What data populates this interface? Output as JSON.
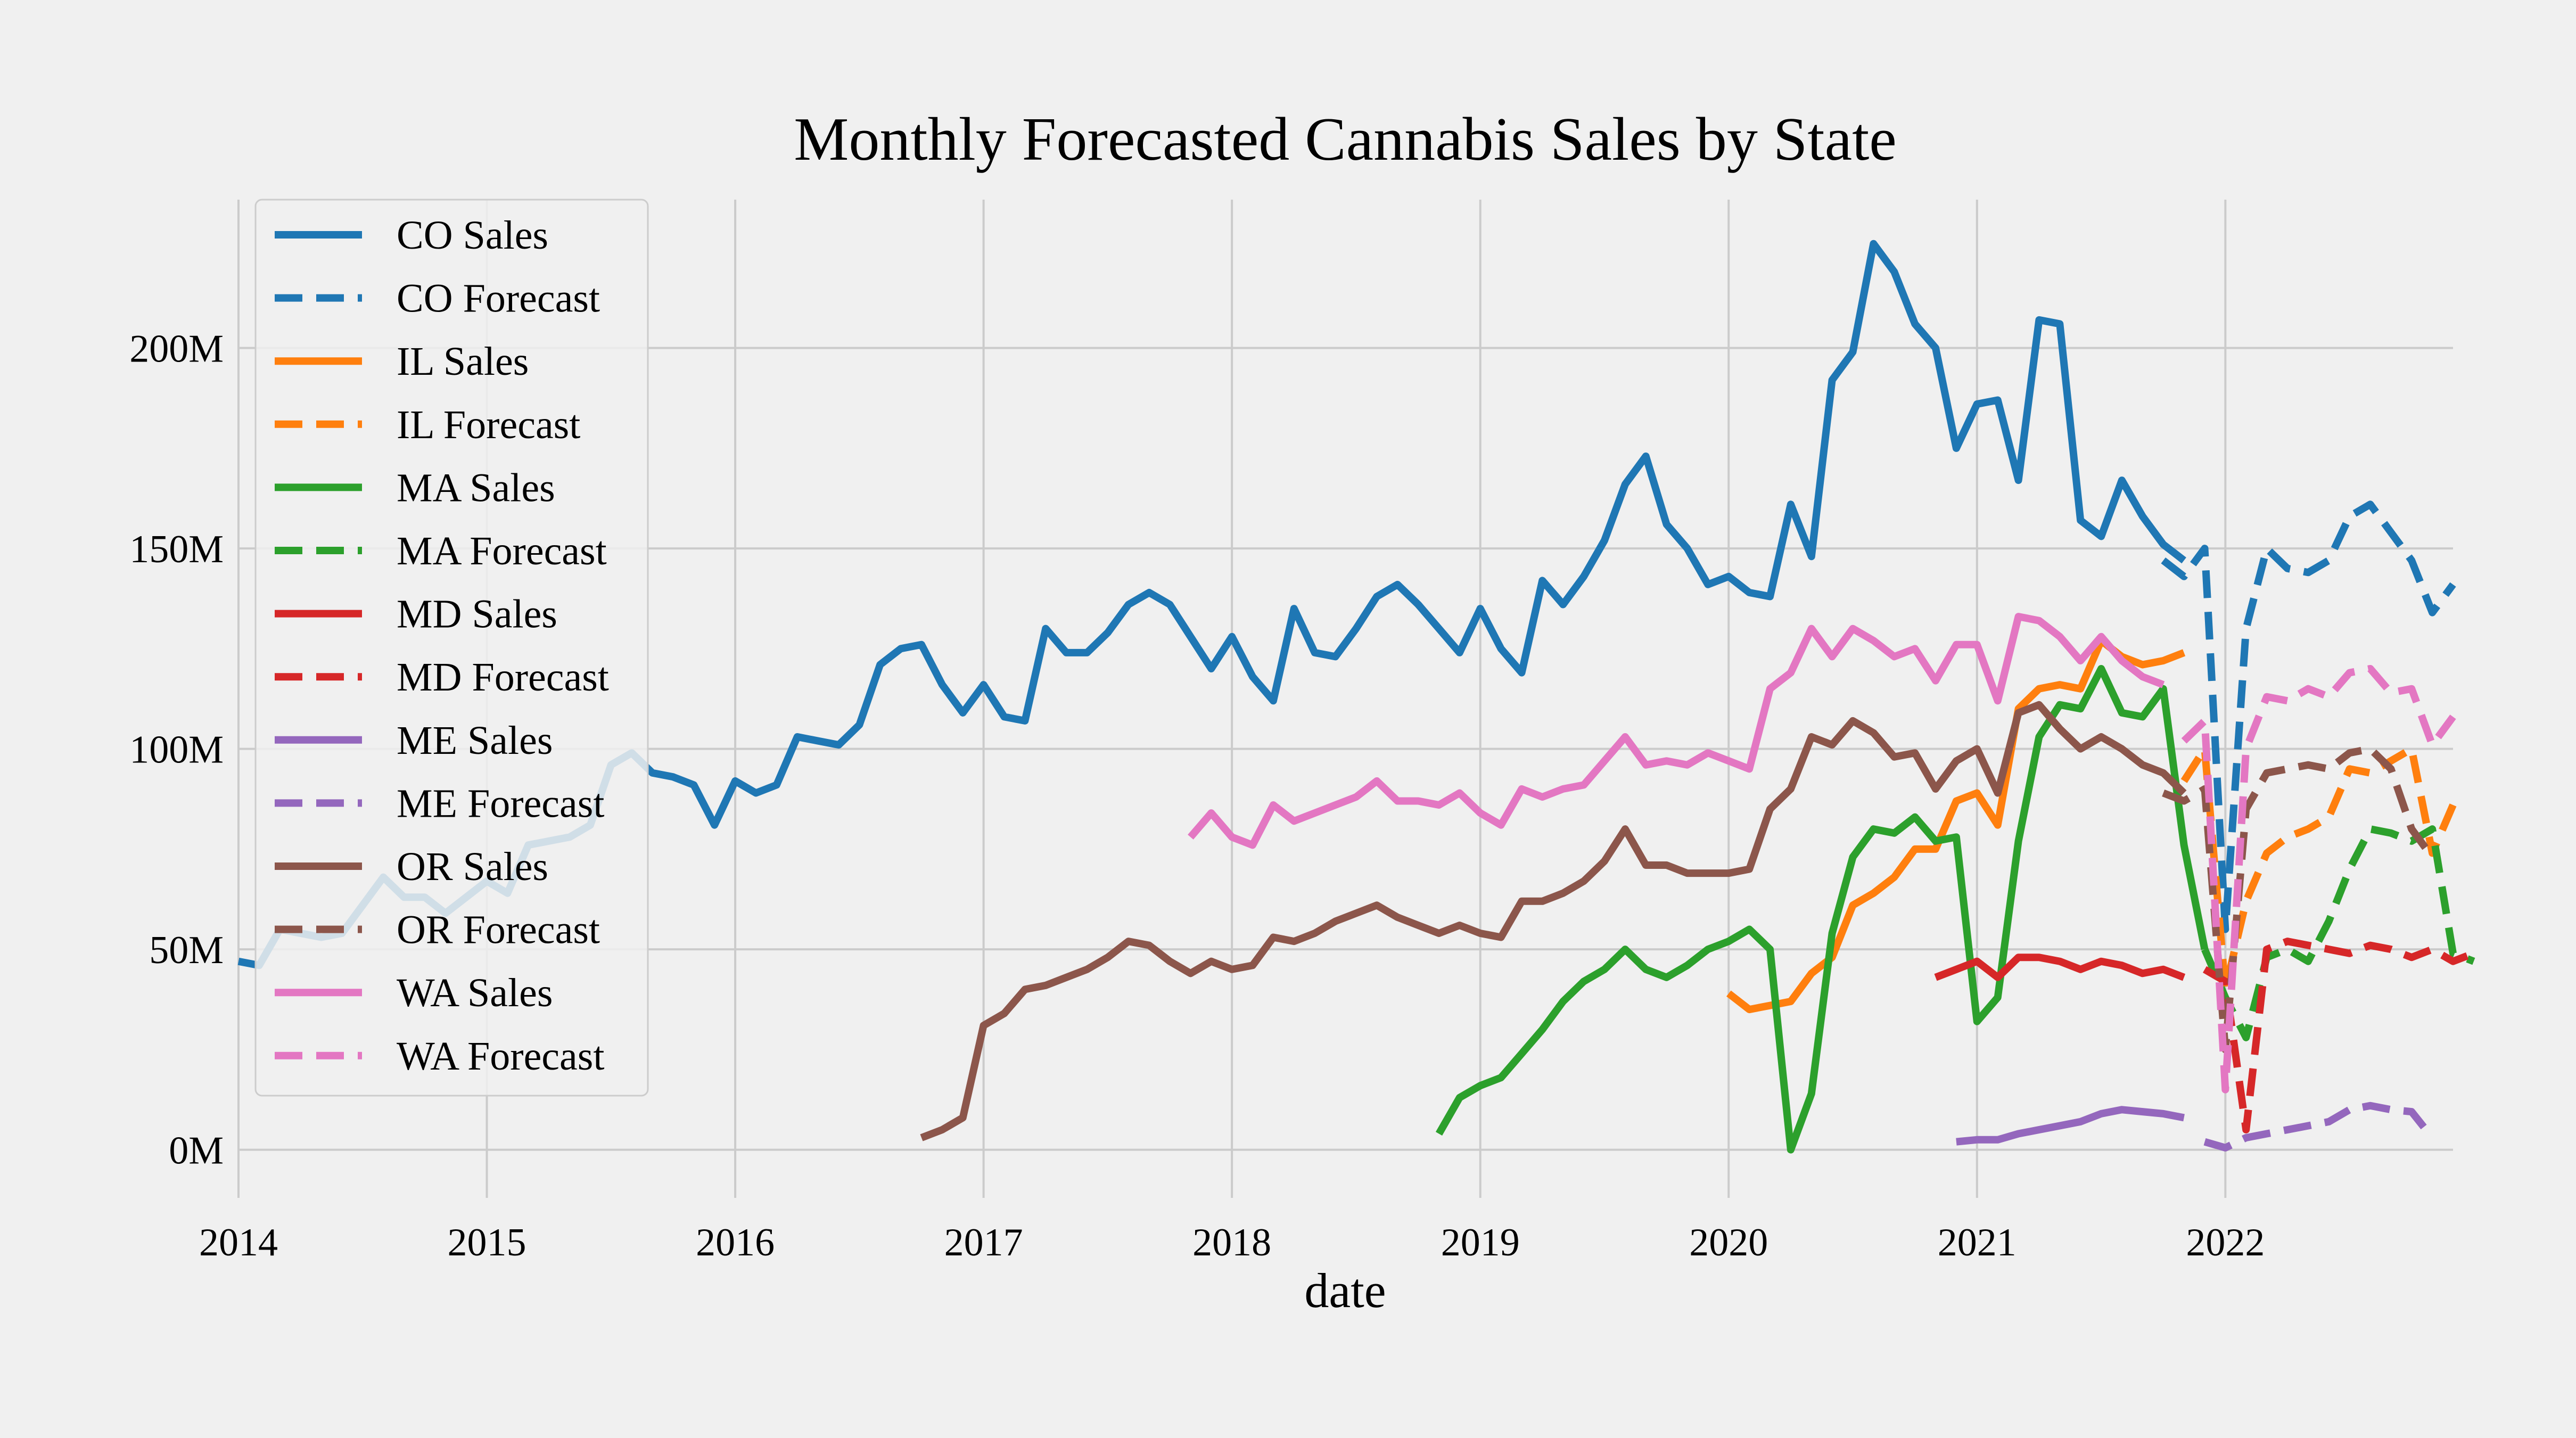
{
  "chart_data": {
    "type": "line",
    "title": "Monthly Forecasted Cannabis Sales by State",
    "xlabel": "date",
    "ylabel": "",
    "xlim": [
      "2014-01",
      "2022-12"
    ],
    "ylim": [
      -12,
      237
    ],
    "x_ticks": [
      "2014",
      "2015",
      "2016",
      "2017",
      "2018",
      "2019",
      "2020",
      "2021",
      "2022"
    ],
    "y_ticks": [
      {
        "value": 0,
        "label": "0M"
      },
      {
        "value": 50,
        "label": "50M"
      },
      {
        "value": 100,
        "label": "100M"
      },
      {
        "value": 150,
        "label": "150M"
      },
      {
        "value": 200,
        "label": "200M"
      }
    ],
    "grid": true,
    "legend_position": "upper-left",
    "series": [
      {
        "name": "CO Sales",
        "color": "#1f77b4",
        "style": "solid",
        "start": "2014-01",
        "values": [
          47,
          46,
          55,
          54,
          53,
          54,
          61,
          68,
          63,
          63,
          59,
          63,
          67,
          64,
          76,
          77,
          78,
          81,
          96,
          99,
          94,
          93,
          91,
          81,
          92,
          89,
          91,
          103,
          102,
          101,
          106,
          121,
          125,
          126,
          116,
          109,
          116,
          108,
          107,
          130,
          124,
          124,
          129,
          136,
          139,
          136,
          128,
          120,
          128,
          118,
          112,
          135,
          124,
          123,
          130,
          138,
          141,
          136,
          130,
          124,
          135,
          125,
          119,
          142,
          136,
          143,
          152,
          166,
          173,
          156,
          150,
          141,
          143,
          139,
          138,
          161,
          148,
          192,
          199,
          226,
          219,
          206,
          200,
          175,
          186,
          187,
          167,
          207,
          206,
          157,
          153,
          167,
          158,
          151,
          147
        ]
      },
      {
        "name": "CO Forecast",
        "color": "#1f77b4",
        "style": "dashed",
        "start": "2021-10",
        "values": [
          147,
          143,
          150,
          55,
          130,
          150,
          145,
          144,
          147,
          158,
          161,
          154,
          147,
          134,
          141
        ]
      },
      {
        "name": "IL Sales",
        "color": "#ff7f0e",
        "style": "solid",
        "start": "2020-01",
        "values": [
          39,
          35,
          36,
          37,
          44,
          48,
          61,
          64,
          68,
          75,
          75,
          87,
          89,
          81,
          110,
          115,
          116,
          115,
          127,
          123,
          121,
          122,
          124
        ]
      },
      {
        "name": "IL Forecast",
        "color": "#ff7f0e",
        "style": "dashed",
        "start": "2021-11",
        "values": [
          92,
          100,
          40,
          62,
          74,
          78,
          80,
          83,
          95,
          94,
          97,
          100,
          74,
          86
        ]
      },
      {
        "name": "MA Sales",
        "color": "#2ca02c",
        "style": "solid",
        "start": "2018-11",
        "values": [
          4,
          13,
          16,
          18,
          24,
          30,
          37,
          42,
          45,
          50,
          45,
          43,
          46,
          50,
          52,
          55,
          50,
          0,
          14,
          54,
          73,
          80,
          79,
          83,
          77,
          78,
          32,
          38,
          77,
          103,
          111,
          110,
          120,
          109,
          108,
          115,
          76,
          50
        ]
      },
      {
        "name": "MA Forecast",
        "color": "#2ca02c",
        "style": "dashed",
        "start": "2021-12",
        "values": [
          50,
          38,
          28,
          48,
          50,
          47,
          57,
          70,
          80,
          79,
          77,
          80,
          49,
          47
        ]
      },
      {
        "name": "MD Sales",
        "color": "#d62728",
        "style": "solid",
        "start": "2020-11",
        "values": [
          43,
          45,
          47,
          43,
          48,
          48,
          47,
          45,
          47,
          46,
          44,
          45,
          43
        ]
      },
      {
        "name": "MD Forecast",
        "color": "#d62728",
        "style": "dashed",
        "start": "2021-12",
        "values": [
          45,
          42,
          5,
          50,
          52,
          51,
          50,
          49,
          51,
          50,
          48,
          50,
          47,
          49
        ]
      },
      {
        "name": "ME Sales",
        "color": "#9467bd",
        "style": "solid",
        "start": "2020-12",
        "values": [
          2,
          2.5,
          2.5,
          4,
          5,
          6,
          7,
          9,
          10,
          9.5,
          9,
          8
        ]
      },
      {
        "name": "ME Forecast",
        "color": "#9467bd",
        "style": "dashed",
        "start": "2021-12",
        "values": [
          2,
          0.5,
          3,
          4,
          5,
          6,
          7,
          10,
          11,
          10,
          9.5,
          3
        ]
      },
      {
        "name": "OR Sales",
        "color": "#8c564b",
        "style": "solid",
        "start": "2016-10",
        "values": [
          3,
          5,
          8,
          31,
          34,
          40,
          41,
          43,
          45,
          48,
          52,
          51,
          47,
          44,
          47,
          45,
          46,
          53,
          52,
          54,
          57,
          59,
          61,
          58,
          56,
          54,
          56,
          54,
          53,
          62,
          62,
          64,
          67,
          72,
          80,
          71,
          71,
          69,
          69,
          69,
          70,
          85,
          90,
          103,
          101,
          107,
          104,
          98,
          99,
          90,
          97,
          100,
          89,
          109,
          111,
          105,
          100,
          103,
          100,
          96,
          94,
          89
        ]
      },
      {
        "name": "OR Forecast",
        "color": "#8c564b",
        "style": "dashed",
        "start": "2021-10",
        "values": [
          89,
          87,
          90,
          25,
          85,
          94,
          95,
          96,
          95,
          99,
          100,
          95,
          80,
          73
        ]
      },
      {
        "name": "WA Sales",
        "color": "#e377c2",
        "style": "solid",
        "start": "2017-11",
        "values": [
          78,
          84,
          78,
          76,
          86,
          82,
          84,
          86,
          88,
          92,
          87,
          87,
          86,
          89,
          84,
          81,
          90,
          88,
          90,
          91,
          97,
          103,
          96,
          97,
          96,
          99,
          97,
          95,
          115,
          119,
          130,
          123,
          130,
          127,
          123,
          125,
          117,
          126,
          126,
          112,
          133,
          132,
          128,
          122,
          128,
          122,
          118,
          116
        ]
      },
      {
        "name": "WA Forecast",
        "color": "#e377c2",
        "style": "dashed",
        "start": "2021-11",
        "values": [
          102,
          107,
          15,
          100,
          113,
          112,
          115,
          113,
          119,
          120,
          114,
          115,
          101,
          108
        ]
      }
    ]
  }
}
